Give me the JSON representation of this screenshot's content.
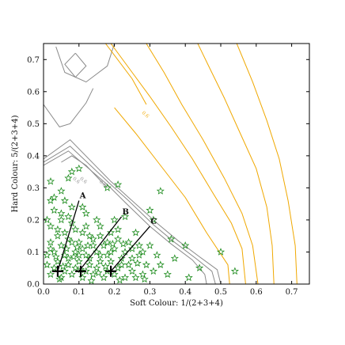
{
  "chart_data": {
    "type": "scatter",
    "xlabel": "Soft Colour: 1/(2+3+4)",
    "ylabel": "Hard Colour: 5/(2+3+4)",
    "xlim": [
      0.0,
      0.75
    ],
    "ylim": [
      0.0,
      0.75
    ],
    "x_ticks": [
      0.0,
      0.1,
      0.2,
      0.3,
      0.4,
      0.5,
      0.6,
      0.7
    ],
    "y_ticks": [
      0.0,
      0.1,
      0.2,
      0.3,
      0.4,
      0.5,
      0.6,
      0.7
    ],
    "x_tick_labels": [
      "0.0",
      "0.1",
      "0.2",
      "0.3",
      "0.4",
      "0.5",
      "0.6",
      "0.7"
    ],
    "y_tick_labels": [
      "0.0",
      "0.1",
      "0.2",
      "0.3",
      "0.4",
      "0.5",
      "0.6",
      "0.7"
    ],
    "grid": false,
    "colors": {
      "points": "#1a8a1a",
      "orange_contours": "#f0a800",
      "gray_contours": "#8a8a8a",
      "tracks": "#000000"
    },
    "contour_labels": [
      {
        "text": "0.6",
        "x": 0.285,
        "y": 0.525,
        "color": "orange"
      },
      {
        "text": "0.6",
        "x": 0.09,
        "y": 0.32,
        "color": "gray"
      },
      {
        "text": "0.6",
        "x": 0.11,
        "y": 0.32,
        "color": "gray"
      },
      {
        "text": "0.8",
        "x": 0.165,
        "y": 0.31,
        "color": "gray"
      }
    ],
    "tracks": [
      {
        "label": "A",
        "start": [
          0.04,
          0.04
        ],
        "end": [
          0.1,
          0.26
        ]
      },
      {
        "label": "B",
        "start": [
          0.1,
          0.04
        ],
        "end": [
          0.22,
          0.21
        ]
      },
      {
        "label": "C",
        "start": [
          0.19,
          0.04
        ],
        "end": [
          0.3,
          0.18
        ]
      }
    ],
    "markers": [
      {
        "x": 0.04,
        "y": 0.04
      },
      {
        "x": 0.105,
        "y": 0.04
      },
      {
        "x": 0.19,
        "y": 0.04
      }
    ],
    "gray_contours": [
      [
        [
          0.035,
          0.74
        ],
        [
          0.06,
          0.66
        ],
        [
          0.12,
          0.63
        ],
        [
          0.18,
          0.68
        ],
        [
          0.2,
          0.75
        ]
      ],
      [
        [
          0.09,
          0.72
        ],
        [
          0.06,
          0.685
        ],
        [
          0.09,
          0.645
        ],
        [
          0.12,
          0.68
        ],
        [
          0.09,
          0.72
        ]
      ],
      [
        [
          0.0,
          0.56
        ],
        [
          0.045,
          0.49
        ],
        [
          0.075,
          0.5
        ],
        [
          0.12,
          0.565
        ],
        [
          0.14,
          0.61
        ]
      ],
      [
        [
          0.0,
          0.39
        ],
        [
          0.075,
          0.45
        ],
        [
          0.19,
          0.32
        ],
        [
          0.24,
          0.27
        ],
        [
          0.32,
          0.19
        ],
        [
          0.38,
          0.135
        ],
        [
          0.44,
          0.085
        ],
        [
          0.49,
          0.045
        ],
        [
          0.5,
          0.0
        ]
      ],
      [
        [
          0.0,
          0.38
        ],
        [
          0.075,
          0.43
        ],
        [
          0.185,
          0.315
        ],
        [
          0.24,
          0.26
        ],
        [
          0.31,
          0.185
        ],
        [
          0.37,
          0.13
        ],
        [
          0.43,
          0.08
        ],
        [
          0.475,
          0.04
        ],
        [
          0.485,
          0.0
        ]
      ],
      [
        [
          0.0,
          0.37
        ],
        [
          0.07,
          0.415
        ],
        [
          0.18,
          0.31
        ],
        [
          0.23,
          0.255
        ],
        [
          0.3,
          0.18
        ],
        [
          0.36,
          0.125
        ],
        [
          0.42,
          0.075
        ],
        [
          0.455,
          0.03
        ],
        [
          0.46,
          0.0
        ]
      ],
      [
        [
          0.05,
          0.38
        ],
        [
          0.08,
          0.4
        ],
        [
          0.12,
          0.37
        ],
        [
          0.18,
          0.3
        ]
      ]
    ],
    "orange_contours": [
      [
        [
          0.175,
          0.75
        ],
        [
          0.25,
          0.64
        ],
        [
          0.29,
          0.56
        ]
      ],
      [
        [
          0.2,
          0.55
        ],
        [
          0.26,
          0.47
        ],
        [
          0.33,
          0.37
        ],
        [
          0.4,
          0.27
        ],
        [
          0.46,
          0.16
        ],
        [
          0.52,
          0.06
        ],
        [
          0.525,
          0.0
        ]
      ],
      [
        [
          0.19,
          0.75
        ],
        [
          0.25,
          0.66
        ],
        [
          0.3,
          0.585
        ],
        [
          0.36,
          0.49
        ],
        [
          0.42,
          0.39
        ],
        [
          0.48,
          0.28
        ],
        [
          0.53,
          0.19
        ],
        [
          0.56,
          0.11
        ],
        [
          0.57,
          0.0
        ]
      ],
      [
        [
          0.29,
          0.75
        ],
        [
          0.34,
          0.66
        ],
        [
          0.39,
          0.56
        ],
        [
          0.45,
          0.45
        ],
        [
          0.51,
          0.33
        ],
        [
          0.56,
          0.22
        ],
        [
          0.59,
          0.12
        ],
        [
          0.605,
          0.0
        ]
      ],
      [
        [
          0.435,
          0.75
        ],
        [
          0.47,
          0.67
        ],
        [
          0.51,
          0.58
        ],
        [
          0.555,
          0.47
        ],
        [
          0.6,
          0.36
        ],
        [
          0.63,
          0.24
        ],
        [
          0.645,
          0.12
        ],
        [
          0.65,
          0.0
        ]
      ],
      [
        [
          0.545,
          0.75
        ],
        [
          0.59,
          0.63
        ],
        [
          0.63,
          0.51
        ],
        [
          0.665,
          0.39
        ],
        [
          0.69,
          0.26
        ],
        [
          0.71,
          0.12
        ],
        [
          0.715,
          0.0
        ]
      ]
    ],
    "points": [
      [
        0.02,
        0.32
      ],
      [
        0.07,
        0.33
      ],
      [
        0.08,
        0.35
      ],
      [
        0.1,
        0.36
      ],
      [
        0.18,
        0.3
      ],
      [
        0.21,
        0.31
      ],
      [
        0.33,
        0.29
      ],
      [
        0.3,
        0.23
      ],
      [
        0.31,
        0.2
      ],
      [
        0.36,
        0.14
      ],
      [
        0.4,
        0.12
      ],
      [
        0.5,
        0.1
      ],
      [
        0.54,
        0.04
      ],
      [
        0.33,
        0.06
      ],
      [
        0.44,
        0.05
      ],
      [
        0.01,
        0.2
      ],
      [
        0.02,
        0.26
      ],
      [
        0.03,
        0.27
      ],
      [
        0.05,
        0.29
      ],
      [
        0.06,
        0.26
      ],
      [
        0.08,
        0.24
      ],
      [
        0.11,
        0.24
      ],
      [
        0.03,
        0.23
      ],
      [
        0.05,
        0.22
      ],
      [
        0.07,
        0.21
      ],
      [
        0.12,
        0.22
      ],
      [
        0.15,
        0.2
      ],
      [
        0.2,
        0.2
      ],
      [
        0.23,
        0.21
      ],
      [
        0.26,
        0.16
      ],
      [
        0.27,
        0.12
      ],
      [
        0.02,
        0.18
      ],
      [
        0.04,
        0.17
      ],
      [
        0.06,
        0.16
      ],
      [
        0.09,
        0.17
      ],
      [
        0.11,
        0.16
      ],
      [
        0.13,
        0.15
      ],
      [
        0.16,
        0.15
      ],
      [
        0.19,
        0.16
      ],
      [
        0.21,
        0.14
      ],
      [
        0.24,
        0.13
      ],
      [
        0.17,
        0.12
      ],
      [
        0.14,
        0.12
      ],
      [
        0.11,
        0.11
      ],
      [
        0.08,
        0.13
      ],
      [
        0.05,
        0.12
      ],
      [
        0.02,
        0.13
      ],
      [
        0.03,
        0.1
      ],
      [
        0.06,
        0.09
      ],
      [
        0.09,
        0.1
      ],
      [
        0.12,
        0.09
      ],
      [
        0.15,
        0.1
      ],
      [
        0.18,
        0.09
      ],
      [
        0.2,
        0.11
      ],
      [
        0.23,
        0.1
      ],
      [
        0.25,
        0.08
      ],
      [
        0.27,
        0.09
      ],
      [
        0.29,
        0.06
      ],
      [
        0.31,
        0.04
      ],
      [
        0.28,
        0.03
      ],
      [
        0.25,
        0.04
      ],
      [
        0.22,
        0.06
      ],
      [
        0.19,
        0.07
      ],
      [
        0.16,
        0.07
      ],
      [
        0.13,
        0.06
      ],
      [
        0.1,
        0.07
      ],
      [
        0.07,
        0.06
      ],
      [
        0.04,
        0.07
      ],
      [
        0.01,
        0.06
      ],
      [
        0.02,
        0.03
      ],
      [
        0.05,
        0.02
      ],
      [
        0.08,
        0.03
      ],
      [
        0.11,
        0.02
      ],
      [
        0.14,
        0.03
      ],
      [
        0.17,
        0.02
      ],
      [
        0.2,
        0.03
      ],
      [
        0.23,
        0.02
      ],
      [
        0.26,
        0.02
      ],
      [
        0.12,
        0.04
      ],
      [
        0.15,
        0.05
      ],
      [
        0.18,
        0.04
      ],
      [
        0.21,
        0.05
      ],
      [
        0.24,
        0.06
      ],
      [
        0.06,
        0.04
      ],
      [
        0.09,
        0.05
      ],
      [
        0.03,
        0.05
      ],
      [
        0.07,
        0.08
      ],
      [
        0.1,
        0.09
      ],
      [
        0.13,
        0.08
      ],
      [
        0.16,
        0.09
      ],
      [
        0.19,
        0.1
      ],
      [
        0.22,
        0.08
      ],
      [
        0.25,
        0.11
      ],
      [
        0.28,
        0.1
      ],
      [
        0.14,
        0.14
      ],
      [
        0.04,
        0.15
      ],
      [
        0.07,
        0.14
      ],
      [
        0.1,
        0.13
      ],
      [
        0.12,
        0.18
      ],
      [
        0.08,
        0.19
      ],
      [
        0.05,
        0.2
      ],
      [
        0.01,
        0.09
      ],
      [
        0.02,
        0.11
      ],
      [
        0.16,
        0.18
      ],
      [
        0.18,
        0.13
      ],
      [
        0.21,
        0.17
      ],
      [
        0.32,
        0.09
      ],
      [
        0.3,
        0.12
      ],
      [
        0.37,
        0.08
      ],
      [
        0.35,
        0.03
      ],
      [
        0.41,
        0.02
      ],
      [
        0.045,
        0.015
      ],
      [
        0.135,
        0.01
      ],
      [
        0.215,
        0.012
      ],
      [
        0.285,
        0.015
      ],
      [
        0.095,
        0.115
      ],
      [
        0.065,
        0.11
      ],
      [
        0.035,
        0.085
      ],
      [
        0.175,
        0.055
      ],
      [
        0.155,
        0.035
      ],
      [
        0.195,
        0.125
      ],
      [
        0.225,
        0.125
      ],
      [
        0.265,
        0.065
      ],
      [
        0.105,
        0.045
      ],
      [
        0.125,
        0.12
      ],
      [
        0.055,
        0.055
      ],
      [
        0.085,
        0.085
      ]
    ]
  }
}
